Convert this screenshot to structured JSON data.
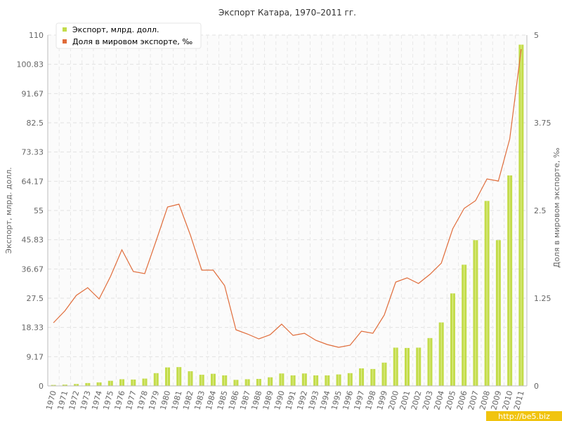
{
  "chart_data": {
    "type": "bar",
    "title": "Экспорт Катара, 1970–2011 гг.",
    "xlabel": "",
    "ylabel": "Экспорт, млрд. долл.",
    "y2label": "Доля в мировом экспорте, ‰",
    "ylim": [
      0,
      110
    ],
    "y2lim": [
      0,
      5
    ],
    "yticks": [
      "0",
      "9.17",
      "18.33",
      "27.5",
      "36.67",
      "45.83",
      "55",
      "64.17",
      "73.33",
      "82.5",
      "91.67",
      "100.83",
      "110"
    ],
    "y2ticks": [
      "0",
      "1.25",
      "2.5",
      "3.75",
      "5"
    ],
    "grid": true,
    "legend_position": "top-left",
    "categories": [
      "1970",
      "1971",
      "1972",
      "1973",
      "1974",
      "1975",
      "1976",
      "1977",
      "1978",
      "1979",
      "1980",
      "1981",
      "1982",
      "1983",
      "1984",
      "1985",
      "1986",
      "1987",
      "1988",
      "1989",
      "1990",
      "1991",
      "1992",
      "1993",
      "1994",
      "1995",
      "1996",
      "1997",
      "1998",
      "1999",
      "2000",
      "2001",
      "2002",
      "2003",
      "2004",
      "2005",
      "2006",
      "2007",
      "2008",
      "2009",
      "2010",
      "2011"
    ],
    "series": [
      {
        "name": "Экспорт, млрд. долл.",
        "kind": "bar",
        "axis": "left",
        "color": "#c3dc4a",
        "values": [
          0.3,
          0.4,
          0.6,
          0.9,
          1.1,
          1.6,
          2.1,
          2.0,
          2.3,
          4.0,
          5.8,
          5.9,
          4.6,
          3.5,
          3.8,
          3.3,
          1.9,
          2.1,
          2.2,
          2.7,
          3.9,
          3.3,
          3.9,
          3.3,
          3.3,
          3.6,
          4.0,
          5.5,
          5.3,
          7.3,
          12.0,
          11.9,
          12.0,
          15.0,
          19.9,
          29.0,
          38.0,
          45.7,
          58.0,
          45.7,
          66.0,
          107.0
        ]
      },
      {
        "name": "Доля в мировом экспорте, ‰",
        "kind": "line",
        "axis": "right",
        "color": "#e06c3a",
        "values": [
          0.9,
          1.07,
          1.29,
          1.4,
          1.24,
          1.56,
          1.94,
          1.63,
          1.6,
          2.07,
          2.55,
          2.59,
          2.15,
          1.65,
          1.65,
          1.43,
          0.8,
          0.74,
          0.67,
          0.73,
          0.88,
          0.72,
          0.75,
          0.65,
          0.59,
          0.55,
          0.58,
          0.78,
          0.75,
          1.01,
          1.48,
          1.54,
          1.46,
          1.59,
          1.75,
          2.24,
          2.53,
          2.64,
          2.95,
          2.92,
          3.52,
          4.8
        ]
      }
    ]
  },
  "watermark": "http://be5.biz",
  "colors": {
    "bar_fill": "#c3dc4a",
    "bar_highlight": "#e4f19a",
    "line": "#e06c3a",
    "grid": "#e2e2e2",
    "axis": "#bdbdbd",
    "watermark_bg": "#f1c40f"
  }
}
